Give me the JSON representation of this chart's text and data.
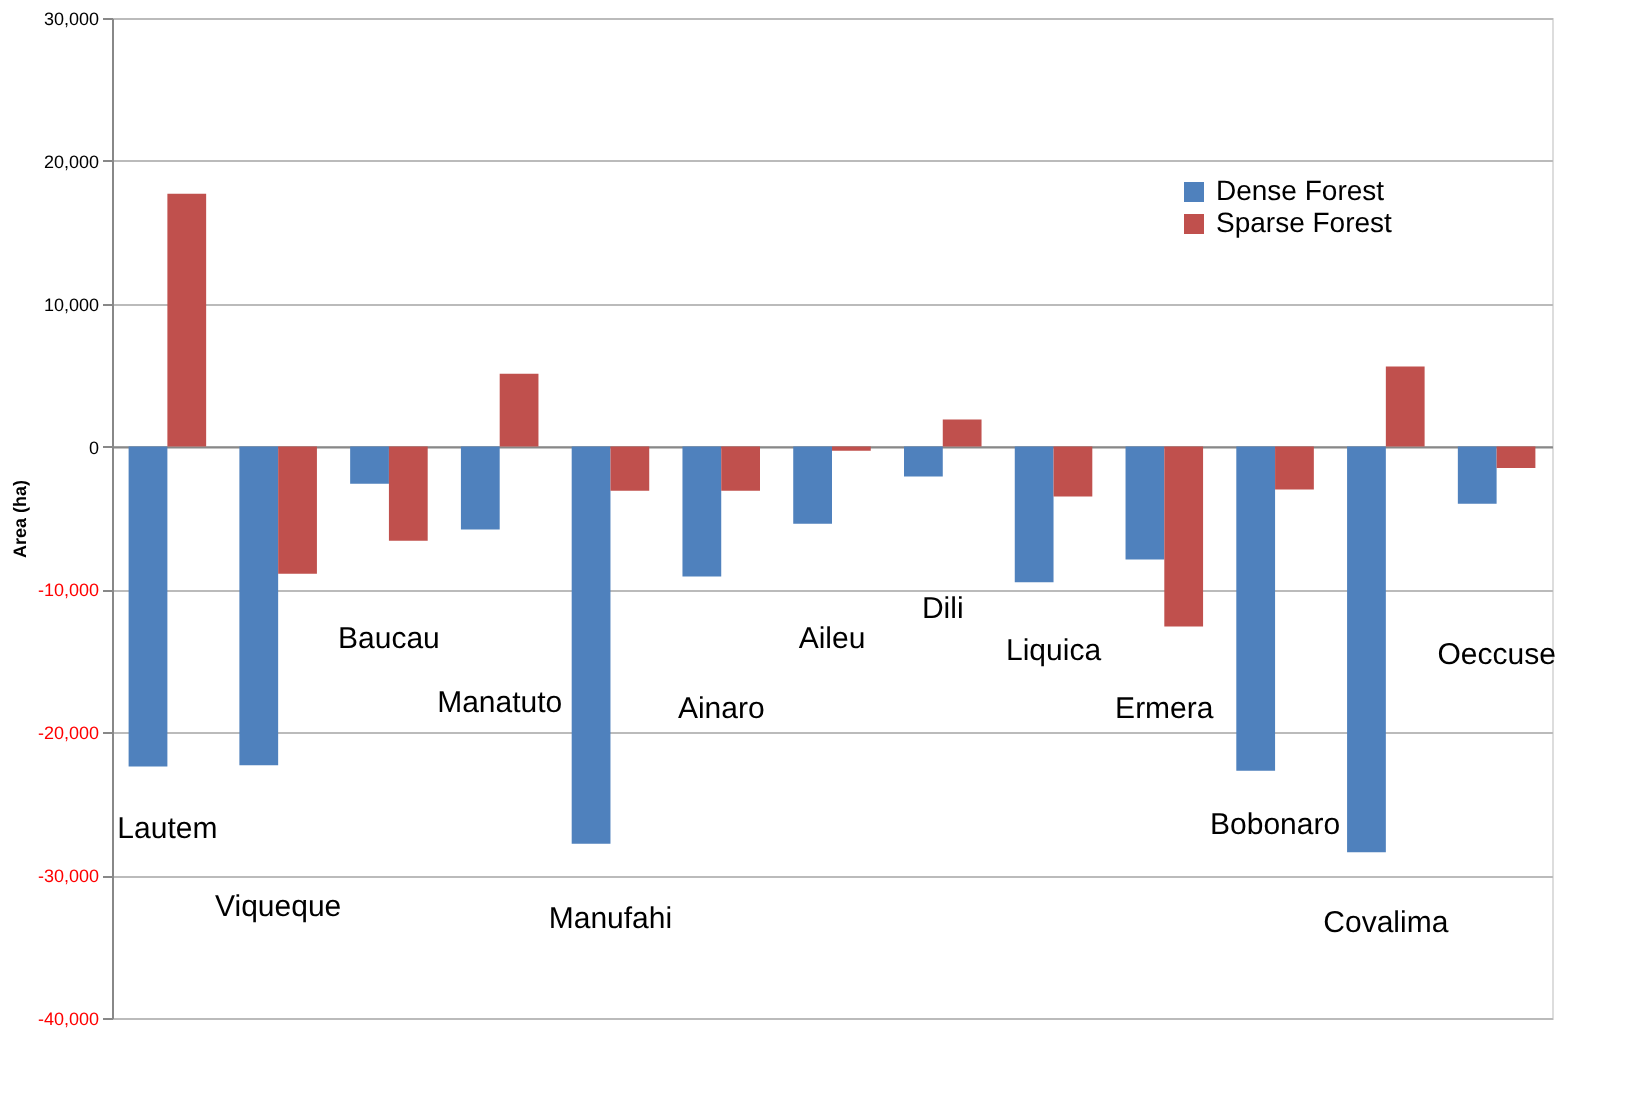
{
  "chart_data": {
    "type": "bar",
    "ylabel": "Area (ha)",
    "categories": [
      "Lautem",
      "Viqueque",
      "Baucau",
      "Manatuto",
      "Manufahi",
      "Ainaro",
      "Aileu",
      "Dili",
      "Liquica",
      "Ermera",
      "Bobonaro",
      "Covalima",
      "Oeccuse"
    ],
    "series": [
      {
        "name": "Dense Forest",
        "color": "#4f81bd",
        "values": [
          -22400,
          -22300,
          -2600,
          -5800,
          -27800,
          -9100,
          -5400,
          -2100,
          -9500,
          -7900,
          -22700,
          -28400,
          -4000
        ]
      },
      {
        "name": "Sparse Forest",
        "color": "#c0504d",
        "values": [
          17700,
          -8900,
          -6600,
          5100,
          -3100,
          -3100,
          -300,
          1900,
          -3500,
          -12600,
          -3000,
          5600,
          -1500
        ]
      }
    ],
    "ylim": [
      -40000,
      30000
    ],
    "yticks": [
      {
        "value": -40000,
        "label": "-40,000"
      },
      {
        "value": -30000,
        "label": "-30,000"
      },
      {
        "value": -20000,
        "label": "-20,000"
      },
      {
        "value": -10000,
        "label": "-10,000"
      },
      0,
      {
        "value": 10000,
        "label": "10,000"
      },
      {
        "value": 20000,
        "label": "20,000"
      },
      {
        "value": 30000,
        "label": "30,000"
      }
    ],
    "legend": "top right",
    "grid": "y",
    "tick_labels": "y"
  }
}
